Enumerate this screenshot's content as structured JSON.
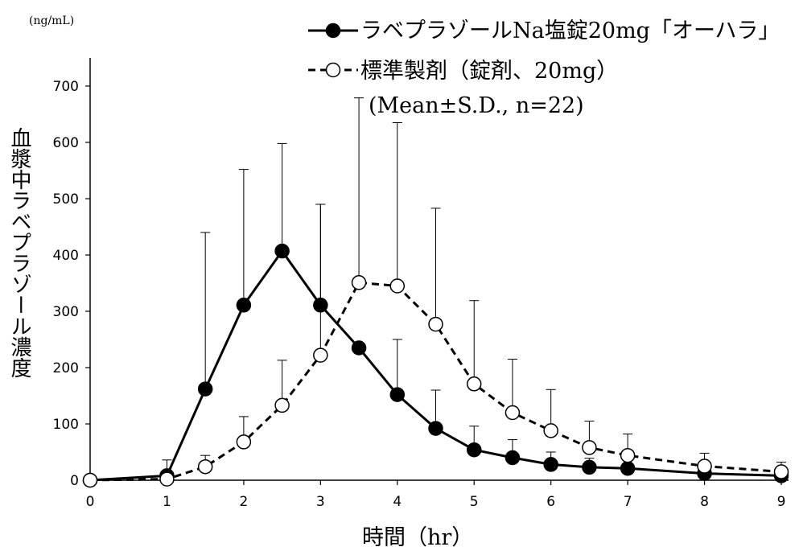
{
  "chart_data": {
    "type": "line",
    "unit_label": "(ng/mL)",
    "ylabel": "血漿中ラベプラゾール濃度",
    "xlabel": "時間（hr）",
    "note": "(Mean±S.D., n=22)",
    "xlim": [
      0,
      9
    ],
    "ylim": [
      0,
      700
    ],
    "xticks": [
      0,
      1,
      2,
      3,
      4,
      5,
      6,
      7,
      8,
      9
    ],
    "yticks": [
      0,
      100,
      200,
      300,
      400,
      500,
      600,
      700
    ],
    "grid": false,
    "legend_position": "top-right",
    "series": [
      {
        "name": "ラベプラゾールNa塩錠20mg「オーハラ」",
        "line_style": "solid",
        "marker": "filled-circle",
        "color": "#000000",
        "x": [
          0,
          1,
          1.5,
          2,
          2.5,
          3,
          3.5,
          4,
          4.5,
          5,
          5.5,
          6,
          6.5,
          7,
          8,
          9
        ],
        "y": [
          0,
          8,
          162,
          311,
          407,
          311,
          235,
          152,
          92,
          54,
          40,
          28,
          23,
          21,
          12,
          8
        ],
        "sd": [
          0,
          28,
          278,
          241,
          191,
          179,
          0,
          98,
          68,
          42,
          32,
          22,
          16,
          14,
          10,
          7
        ]
      },
      {
        "name": "標準製剤（錠剤、20mg）",
        "line_style": "dashed",
        "marker": "open-circle",
        "color": "#000000",
        "x": [
          0,
          1,
          1.5,
          2,
          2.5,
          3,
          3.5,
          4,
          4.5,
          5,
          5.5,
          6,
          6.5,
          7,
          8,
          9
        ],
        "y": [
          0,
          2,
          24,
          68,
          133,
          222,
          351,
          345,
          277,
          171,
          120,
          88,
          58,
          44,
          25,
          15
        ],
        "sd": [
          0,
          8,
          20,
          45,
          80,
          268,
          328,
          290,
          206,
          148,
          95,
          73,
          47,
          38,
          23,
          17
        ]
      }
    ]
  }
}
